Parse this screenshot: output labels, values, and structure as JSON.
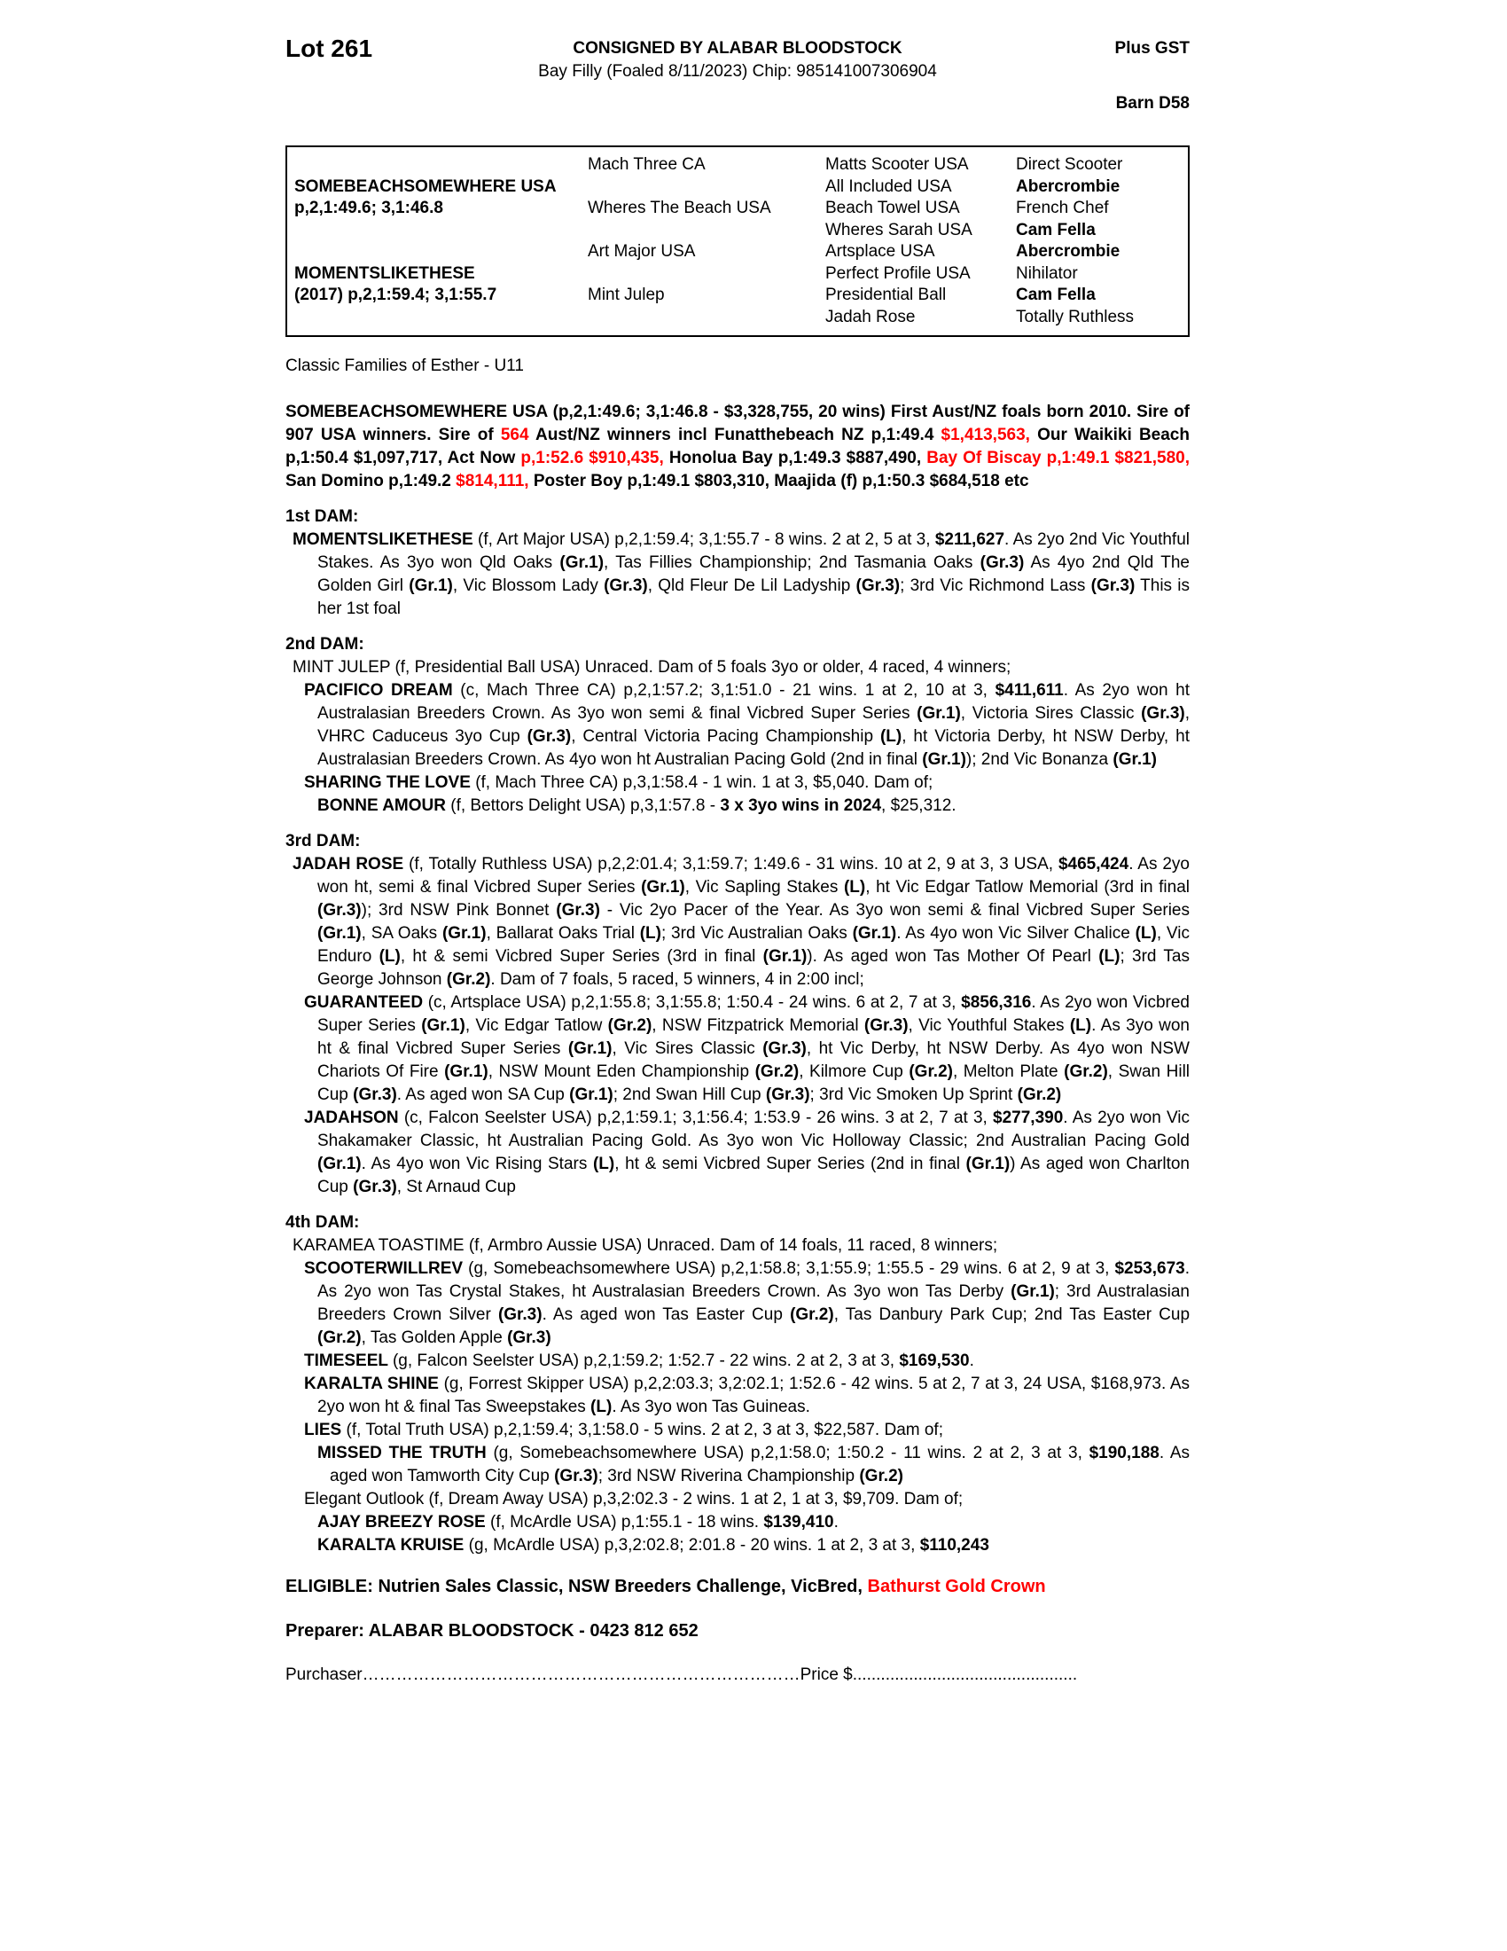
{
  "colors": {
    "accent_red": "#ff0000"
  },
  "header": {
    "lot": "Lot 261",
    "consigned": "CONSIGNED BY ALABAR BLOODSTOCK",
    "description": "Bay Filly (Foaled 8/11/2023) Chip: 985141007306904",
    "gst_note": "Plus GST",
    "barn": "Barn D58"
  },
  "pedigree_rows": [
    {
      "c1": "",
      "c2": "Mach Three CA",
      "c3": "Matts Scooter USA",
      "c4": "Direct Scooter"
    },
    {
      "c1": "SOMEBEACHSOMEWHERE USA",
      "c2": "",
      "c3": "All Included USA",
      "c4": "Abercrombie"
    },
    {
      "c1": "p,2,1:49.6; 3,1:46.8",
      "c2": "Wheres The Beach USA",
      "c3": "Beach Towel USA",
      "c4": "French Chef"
    },
    {
      "c1": "",
      "c2": "",
      "c3": "Wheres Sarah USA",
      "c4": "Cam Fella"
    },
    {
      "c1": "",
      "c2": "Art Major USA",
      "c3": "Artsplace USA",
      "c4": "Abercrombie"
    },
    {
      "c1": "MOMENTSLIKETHESE",
      "c2": "",
      "c3": "Perfect Profile USA",
      "c4": "Nihilator"
    },
    {
      "c1": "(2017) p,2,1:59.4; 3,1:55.7",
      "c2": "Mint Julep",
      "c3": "Presidential Ball",
      "c4": "Cam Fella"
    },
    {
      "c1": "",
      "c2": "",
      "c3": "Jadah Rose",
      "c4": "Totally Ruthless"
    }
  ],
  "family_note": "Classic Families of Esther - U11",
  "sire_summary": [
    {
      "t": "SOMEBEACHSOMEWHERE USA (p,2,1:49.6; 3,1:46.8 - $3,328,755, 20 wins) First Aust/NZ foals born 2010. Sire of 907 USA winners. Sire of ",
      "b": true
    },
    {
      "t": "564",
      "b": true,
      "r": true
    },
    {
      "t": " Aust/NZ winners incl Funatthebeach NZ p,1:49.4 ",
      "b": true
    },
    {
      "t": "$1,413,563,",
      "b": true,
      "r": true
    },
    {
      "t": " Our Waikiki Beach p,1:50.4 $1,097,717, Act Now ",
      "b": true
    },
    {
      "t": "p,1:52.6 $910,435,",
      "b": true,
      "r": true
    },
    {
      "t": " Honolua Bay p,1:49.3 $887,490, ",
      "b": true
    },
    {
      "t": "Bay Of Biscay p,1:49.1 $821,580,",
      "b": true,
      "r": true
    },
    {
      "t": " San Domino p,1:49.2 ",
      "b": true
    },
    {
      "t": "$814,111,",
      "b": true,
      "r": true
    },
    {
      "t": " Poster Boy p,1:49.1 $803,310, Maajida (f) p,1:50.3 $684,518 etc",
      "b": true
    }
  ],
  "sections": [
    {
      "heading": "1st DAM:",
      "paragraphs": [
        {
          "segments": [
            {
              "t": "MOMENTSLIKETHESE ",
              "b": true
            },
            {
              "t": "(f, Art Major USA) p,2,1:59.4; 3,1:55.7 - 8 wins. 2 at 2, 5 at 3, "
            },
            {
              "t": "$211,627",
              "b": true
            },
            {
              "t": ". As 2yo 2nd Vic Youthful Stakes. As 3yo won Qld Oaks "
            },
            {
              "t": "(Gr.1)",
              "b": true
            },
            {
              "t": ", Tas Fillies Championship; 2nd Tasmania Oaks "
            },
            {
              "t": "(Gr.3)",
              "b": true
            },
            {
              "t": " As 4yo 2nd Qld The Golden Girl "
            },
            {
              "t": "(Gr.1)",
              "b": true
            },
            {
              "t": ", Vic Blossom Lady "
            },
            {
              "t": "(Gr.3)",
              "b": true
            },
            {
              "t": ", Qld Fleur De Lil Ladyship "
            },
            {
              "t": "(Gr.3)",
              "b": true
            },
            {
              "t": "; 3rd Vic Richmond Lass "
            },
            {
              "t": "(Gr.3)",
              "b": true
            },
            {
              "t": " This is her 1st foal"
            }
          ]
        }
      ]
    },
    {
      "heading": "2nd DAM:",
      "paragraphs": [
        {
          "segments": [
            {
              "t": "MINT JULEP (f, Presidential Ball USA) Unraced. Dam of 5 foals 3yo or older, 4 raced, 4 winners;"
            }
          ]
        },
        {
          "segments": [
            {
              "t": "PACIFICO DREAM ",
              "b": true
            },
            {
              "t": "(c, Mach Three CA) p,2,1:57.2; 3,1:51.0 - 21 wins. 1 at 2, 10 at 3, "
            },
            {
              "t": "$411,611",
              "b": true
            },
            {
              "t": ". As 2yo won ht Australasian Breeders Crown. As 3yo won semi & final Vicbred Super Series "
            },
            {
              "t": "(Gr.1)",
              "b": true
            },
            {
              "t": ", Victoria Sires Classic "
            },
            {
              "t": "(Gr.3)",
              "b": true
            },
            {
              "t": ", VHRC Caduceus 3yo Cup "
            },
            {
              "t": "(Gr.3)",
              "b": true
            },
            {
              "t": ", Central Victoria Pacing Championship "
            },
            {
              "t": "(L)",
              "b": true
            },
            {
              "t": ", ht Victoria Derby, ht NSW Derby, ht Australasian Breeders Crown. As 4yo won ht Australian Pacing Gold (2nd in final "
            },
            {
              "t": "(Gr.1)",
              "b": true
            },
            {
              "t": "); 2nd Vic Bonanza "
            },
            {
              "t": "(Gr.1)",
              "b": true
            }
          ]
        },
        {
          "segments": [
            {
              "t": "SHARING THE LOVE ",
              "b": true
            },
            {
              "t": "(f, Mach Three CA) p,3,1:58.4 - 1 win. 1 at 3, $5,040. Dam of;"
            }
          ]
        },
        {
          "segments": [
            {
              "t": "BONNE AMOUR ",
              "b": true
            },
            {
              "t": "(f, Bettors Delight USA) p,3,1:57.8 - "
            },
            {
              "t": "3 x 3yo wins in 2024",
              "b": true
            },
            {
              "t": ", $25,312."
            }
          ]
        }
      ]
    },
    {
      "heading": "3rd DAM:",
      "paragraphs": [
        {
          "segments": [
            {
              "t": "JADAH ROSE ",
              "b": true
            },
            {
              "t": "(f, Totally Ruthless USA) p,2,2:01.4; 3,1:59.7; 1:49.6 - 31 wins. 10 at 2, 9 at 3, 3 USA, "
            },
            {
              "t": "$465,424",
              "b": true
            },
            {
              "t": ". As 2yo won ht, semi & final Vicbred Super Series "
            },
            {
              "t": "(Gr.1)",
              "b": true
            },
            {
              "t": ", Vic Sapling Stakes "
            },
            {
              "t": "(L)",
              "b": true
            },
            {
              "t": ", ht Vic Edgar Tatlow Memorial (3rd in final "
            },
            {
              "t": "(Gr.3)",
              "b": true
            },
            {
              "t": "); 3rd NSW Pink Bonnet "
            },
            {
              "t": "(Gr.3)",
              "b": true
            },
            {
              "t": " - Vic 2yo Pacer of the Year. As 3yo won semi & final Vicbred Super Series "
            },
            {
              "t": "(Gr.1)",
              "b": true
            },
            {
              "t": ", SA Oaks "
            },
            {
              "t": "(Gr.1)",
              "b": true
            },
            {
              "t": ", Ballarat Oaks Trial "
            },
            {
              "t": "(L)",
              "b": true
            },
            {
              "t": "; 3rd Vic Australian Oaks "
            },
            {
              "t": "(Gr.1)",
              "b": true
            },
            {
              "t": ". As 4yo won Vic Silver Chalice "
            },
            {
              "t": "(L)",
              "b": true
            },
            {
              "t": ", Vic Enduro "
            },
            {
              "t": "(L)",
              "b": true
            },
            {
              "t": ", ht & semi Vicbred Super Series (3rd in final "
            },
            {
              "t": "(Gr.1)",
              "b": true
            },
            {
              "t": "). As aged won Tas Mother Of Pearl "
            },
            {
              "t": "(L)",
              "b": true
            },
            {
              "t": "; 3rd Tas George Johnson "
            },
            {
              "t": "(Gr.2)",
              "b": true
            },
            {
              "t": ". Dam of 7 foals, 5 raced, 5 winners, 4 in 2:00 incl;"
            }
          ]
        },
        {
          "segments": [
            {
              "t": "GUARANTEED ",
              "b": true
            },
            {
              "t": "(c, Artsplace USA) p,2,1:55.8; 3,1:55.8; 1:50.4 - 24 wins. 6 at 2, 7 at 3, "
            },
            {
              "t": "$856,316",
              "b": true
            },
            {
              "t": ". As 2yo won Vicbred Super Series "
            },
            {
              "t": "(Gr.1)",
              "b": true
            },
            {
              "t": ", Vic Edgar Tatlow "
            },
            {
              "t": "(Gr.2)",
              "b": true
            },
            {
              "t": ", NSW Fitzpatrick Memorial "
            },
            {
              "t": "(Gr.3)",
              "b": true
            },
            {
              "t": ", Vic Youthful Stakes "
            },
            {
              "t": "(L)",
              "b": true
            },
            {
              "t": ". As 3yo won ht & final Vicbred Super Series "
            },
            {
              "t": "(Gr.1)",
              "b": true
            },
            {
              "t": ", Vic Sires Classic "
            },
            {
              "t": "(Gr.3)",
              "b": true
            },
            {
              "t": ", ht Vic Derby, ht NSW Derby. As 4yo won NSW Chariots Of Fire "
            },
            {
              "t": "(Gr.1)",
              "b": true
            },
            {
              "t": ", NSW Mount Eden Championship "
            },
            {
              "t": "(Gr.2)",
              "b": true
            },
            {
              "t": ", Kilmore Cup "
            },
            {
              "t": "(Gr.2)",
              "b": true
            },
            {
              "t": ", Melton Plate "
            },
            {
              "t": "(Gr.2)",
              "b": true
            },
            {
              "t": ", Swan Hill Cup "
            },
            {
              "t": "(Gr.3)",
              "b": true
            },
            {
              "t": ". As aged won SA Cup "
            },
            {
              "t": "(Gr.1)",
              "b": true
            },
            {
              "t": "; 2nd Swan Hill Cup "
            },
            {
              "t": "(Gr.3)",
              "b": true
            },
            {
              "t": "; 3rd Vic Smoken Up Sprint "
            },
            {
              "t": "(Gr.2)",
              "b": true
            }
          ]
        },
        {
          "segments": [
            {
              "t": "JADAHSON ",
              "b": true
            },
            {
              "t": "(c, Falcon Seelster USA) p,2,1:59.1; 3,1:56.4; 1:53.9 - 26 wins. 3 at 2, 7 at 3, "
            },
            {
              "t": "$277,390",
              "b": true
            },
            {
              "t": ". As 2yo won Vic Shakamaker Classic, ht Australian Pacing Gold. As 3yo won Vic Holloway Classic; 2nd Australian Pacing Gold "
            },
            {
              "t": "(Gr.1)",
              "b": true
            },
            {
              "t": ". As 4yo won Vic Rising Stars "
            },
            {
              "t": "(L)",
              "b": true
            },
            {
              "t": ", ht & semi Vicbred Super Series (2nd in final "
            },
            {
              "t": "(Gr.1)",
              "b": true
            },
            {
              "t": ") As aged won Charlton Cup "
            },
            {
              "t": "(Gr.3)",
              "b": true
            },
            {
              "t": ", St Arnaud Cup"
            }
          ]
        }
      ]
    },
    {
      "heading": "4th DAM:",
      "paragraphs": [
        {
          "segments": [
            {
              "t": "KARAMEA TOASTIME (f, Armbro Aussie USA) Unraced. Dam of 14 foals, 11 raced, 8 winners;"
            }
          ]
        },
        {
          "segments": [
            {
              "t": "SCOOTERWILLREV ",
              "b": true
            },
            {
              "t": "(g, Somebeachsomewhere USA) p,2,1:58.8; 3,1:55.9; 1:55.5 - 29 wins. 6 at 2, 9 at 3, "
            },
            {
              "t": "$253,673",
              "b": true
            },
            {
              "t": ". As 2yo won Tas Crystal Stakes, ht Australasian Breeders Crown. As 3yo won Tas Derby "
            },
            {
              "t": "(Gr.1)",
              "b": true
            },
            {
              "t": "; 3rd Australasian Breeders Crown Silver "
            },
            {
              "t": "(Gr.3)",
              "b": true
            },
            {
              "t": ". As aged won Tas Easter Cup "
            },
            {
              "t": "(Gr.2)",
              "b": true
            },
            {
              "t": ", Tas Danbury Park Cup; 2nd Tas Easter Cup "
            },
            {
              "t": "(Gr.2)",
              "b": true
            },
            {
              "t": ", Tas Golden Apple "
            },
            {
              "t": "(Gr.3)",
              "b": true
            }
          ]
        },
        {
          "segments": [
            {
              "t": "TIMESEEL ",
              "b": true
            },
            {
              "t": "(g, Falcon Seelster USA) p,2,1:59.2; 1:52.7 - 22 wins. 2 at 2, 3 at 3, "
            },
            {
              "t": "$169,530",
              "b": true
            },
            {
              "t": "."
            }
          ]
        },
        {
          "segments": [
            {
              "t": "KARALTA SHINE ",
              "b": true
            },
            {
              "t": "(g, Forrest Skipper USA) p,2,2:03.3; 3,2:02.1; 1:52.6 - 42 wins. 5 at 2, 7 at 3, 24 USA, $168,973. As 2yo won ht & final Tas Sweepstakes "
            },
            {
              "t": "(L)",
              "b": true
            },
            {
              "t": ". As 3yo won Tas Guineas."
            }
          ]
        },
        {
          "segments": [
            {
              "t": "LIES ",
              "b": true
            },
            {
              "t": "(f, Total Truth USA) p,2,1:59.4; 3,1:58.0 - 5 wins. 2 at 2, 3 at 3, $22,587. Dam of;"
            }
          ]
        },
        {
          "segments": [
            {
              "t": "MISSED THE TRUTH ",
              "b": true
            },
            {
              "t": "(g, Somebeachsomewhere USA) p,2,1:58.0; 1:50.2 - 11 wins. 2 at 2, 3 at 3, "
            },
            {
              "t": "$190,188",
              "b": true
            },
            {
              "t": ". As aged won Tamworth City Cup "
            },
            {
              "t": "(Gr.3)",
              "b": true
            },
            {
              "t": "; 3rd NSW Riverina Championship "
            },
            {
              "t": "(Gr.2)",
              "b": true
            }
          ]
        },
        {
          "segments": [
            {
              "t": "Elegant Outlook (f, Dream Away USA) p,3,2:02.3 - 2 wins. 1 at 2, 1 at 3, $9,709. Dam of;"
            }
          ]
        },
        {
          "segments": [
            {
              "t": "AJAY BREEZY ROSE ",
              "b": true
            },
            {
              "t": "(f, McArdle USA) p,1:55.1 - 18 wins. "
            },
            {
              "t": "$139,410",
              "b": true
            },
            {
              "t": "."
            }
          ]
        },
        {
          "segments": [
            {
              "t": "KARALTA KRUISE ",
              "b": true
            },
            {
              "t": "(g, McArdle USA) p,3,2:02.8; 2:01.8 - 20 wins. 1 at 2, 3 at 3, "
            },
            {
              "t": "$110,243",
              "b": true
            }
          ]
        }
      ]
    }
  ],
  "eligible_line": [
    {
      "t": "ELIGIBLE: Nutrien Sales Classic, NSW Breeders Challenge, VicBred, ",
      "b": true
    },
    {
      "t": "Bathurst Gold Crown",
      "b": true,
      "r": true
    }
  ],
  "preparer": "Preparer: ALABAR BLOODSTOCK - 0423 812 652",
  "purchaser": {
    "label": "Purchaser",
    "dots1": "……………………………………………………………………",
    "price_label": "Price $",
    "dots2": "................................................"
  }
}
